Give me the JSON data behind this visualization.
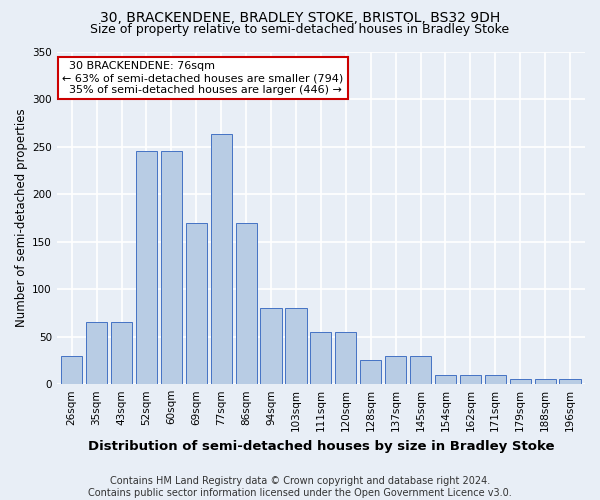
{
  "title1": "30, BRACKENDENE, BRADLEY STOKE, BRISTOL, BS32 9DH",
  "title2": "Size of property relative to semi-detached houses in Bradley Stoke",
  "xlabel": "Distribution of semi-detached houses by size in Bradley Stoke",
  "ylabel": "Number of semi-detached properties",
  "footnote": "Contains HM Land Registry data © Crown copyright and database right 2024.\nContains public sector information licensed under the Open Government Licence v3.0.",
  "categories": [
    "26sqm",
    "35sqm",
    "43sqm",
    "52sqm",
    "60sqm",
    "69sqm",
    "77sqm",
    "86sqm",
    "94sqm",
    "103sqm",
    "111sqm",
    "120sqm",
    "128sqm",
    "137sqm",
    "145sqm",
    "154sqm",
    "162sqm",
    "171sqm",
    "179sqm",
    "188sqm",
    "196sqm"
  ],
  "values": [
    30,
    65,
    65,
    245,
    245,
    170,
    263,
    170,
    80,
    80,
    55,
    55,
    25,
    30,
    30,
    10,
    10,
    10,
    5,
    5,
    5
  ],
  "bar_color": "#b8cce4",
  "bar_edge_color": "#4472c4",
  "subject_label": "30 BRACKENDENE: 76sqm",
  "pct_smaller": 63,
  "count_smaller": 794,
  "pct_larger": 35,
  "count_larger": 446,
  "ylim": [
    0,
    350
  ],
  "yticks": [
    0,
    50,
    100,
    150,
    200,
    250,
    300,
    350
  ],
  "bg_color": "#e8eef6",
  "plot_bg_color": "#e8eef6",
  "grid_color": "#ffffff",
  "title1_fontsize": 10,
  "title2_fontsize": 9,
  "xlabel_fontsize": 9.5,
  "ylabel_fontsize": 8.5,
  "tick_fontsize": 7.5,
  "footnote_fontsize": 7.0,
  "annot_fontsize": 8.0
}
